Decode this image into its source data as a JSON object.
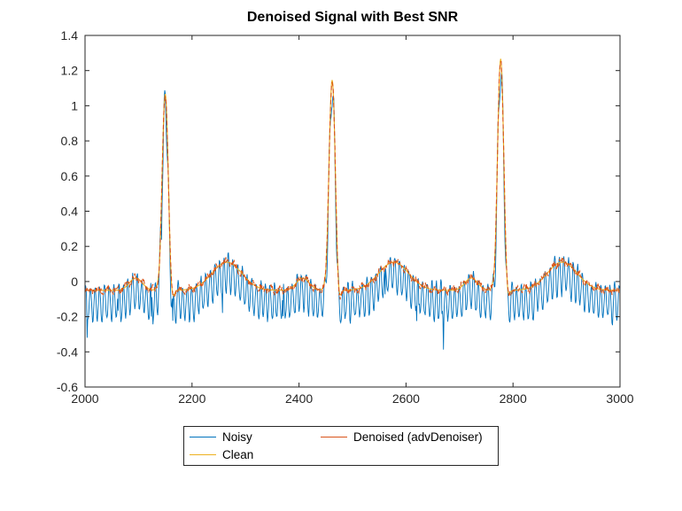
{
  "chart_data": {
    "type": "line",
    "title": "Denoised Signal with Best SNR",
    "xlabel": "",
    "ylabel": "",
    "xlim": [
      2000,
      3000
    ],
    "ylim": [
      -0.6,
      1.4
    ],
    "xticks": [
      2000,
      2200,
      2400,
      2600,
      2800,
      3000
    ],
    "yticks": [
      -0.6,
      -0.4,
      -0.2,
      0,
      0.2,
      0.4,
      0.6,
      0.8,
      1,
      1.2,
      1.4
    ],
    "grid": false,
    "axis_color": "#262626",
    "legend": {
      "position": "south-outside",
      "columns": 2,
      "entries": [
        {
          "label": "Noisy",
          "color": "#0072BD"
        },
        {
          "label": "Clean",
          "color": "#EDB120"
        },
        {
          "label": "Denoised (advDenoiser)",
          "color": "#D95319"
        }
      ]
    },
    "series_info": [
      {
        "name": "Noisy",
        "description": "Clean ECG plus dense high-frequency noise, oscillating roughly between -0.3 and 0.05 along the baseline",
        "color": "#0072BD"
      },
      {
        "name": "Clean",
        "description": "Noise-free ECG, baseline about -0.05 with QRS peaks and T-wave bumps",
        "color": "#EDB120"
      },
      {
        "name": "Denoised (advDenoiser)",
        "description": "Denoised estimate tracking the clean ECG closely with small residual jitter",
        "color": "#D95319"
      }
    ],
    "signal": {
      "baseline": -0.05,
      "beats": [
        {
          "x": 2150,
          "peak": 1.07
        },
        {
          "x": 2462,
          "peak": 1.15
        },
        {
          "x": 2777,
          "peak": 1.27
        }
      ],
      "p_wave": {
        "offset": -55,
        "amp": 0.07,
        "sigma": 12
      },
      "q_wave": {
        "offset": -10,
        "amp": -0.06,
        "sigma": 3
      },
      "r_sigma": 6,
      "s_wave": {
        "offset": 11,
        "amp": -0.13,
        "sigma": 4
      },
      "t_wave": {
        "offset": 115,
        "amp": 0.16,
        "sigma": 28
      },
      "noise": {
        "offset": -0.07,
        "amp_base": 0.05,
        "amp_var": 0.1,
        "period": 8.7,
        "seed": 42
      },
      "denoise_jitter": 0.018,
      "sample_step": 1
    }
  }
}
